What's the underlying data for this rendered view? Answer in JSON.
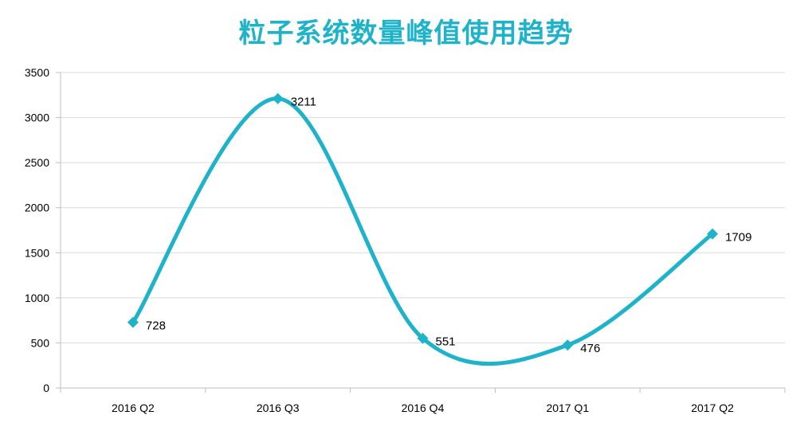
{
  "chart_data": {
    "type": "line",
    "title": "粒子系统数量峰值使用趋势",
    "categories": [
      "2016 Q2",
      "2016 Q3",
      "2016 Q4",
      "2017 Q1",
      "2017 Q2"
    ],
    "series": [
      {
        "values": [
          728,
          3211,
          551,
          476,
          1709
        ]
      }
    ],
    "ylim": [
      0,
      3500
    ],
    "yticks": [
      0,
      500,
      1000,
      1500,
      2000,
      2500,
      3000,
      3500
    ],
    "xlabel": "",
    "ylabel": "",
    "grid": true,
    "smooth": true,
    "marker": "diamond",
    "data_labels": true,
    "legend": "none",
    "colors": {
      "line": "#1fb3c9",
      "title": "#1fb3c9",
      "grid": "#d9d9d9",
      "axis": "#bfbfbf"
    }
  }
}
